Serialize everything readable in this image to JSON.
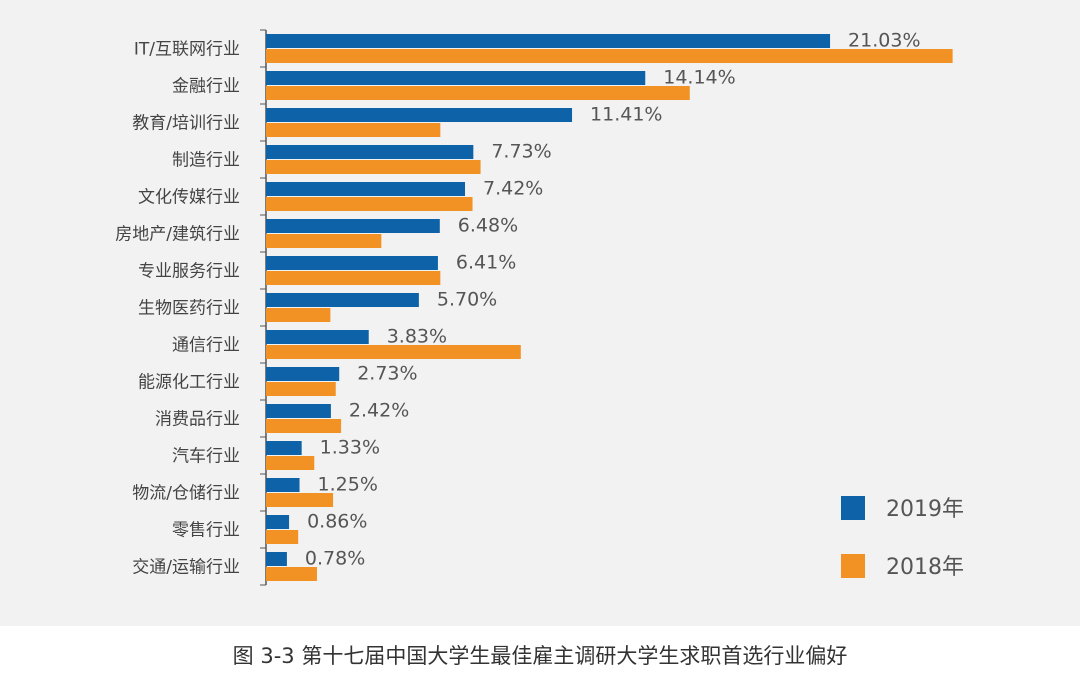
{
  "chart_data": {
    "type": "bar",
    "orientation": "horizontal",
    "categories": [
      "IT/互联网行业",
      "金融行业",
      "教育/培训行业",
      "制造行业",
      "文化传媒行业",
      "房地产/建筑行业",
      "专业服务行业",
      "生物医药行业",
      "通信行业",
      "能源化工行业",
      "消费品行业",
      "汽车行业",
      "物流/仓储行业",
      "零售行业",
      "交通/运输行业"
    ],
    "series": [
      {
        "name": "2019年",
        "color": "#0e63a8",
        "values": [
          21.03,
          14.14,
          11.41,
          7.73,
          7.42,
          6.48,
          6.41,
          5.7,
          3.83,
          2.73,
          2.42,
          1.33,
          1.25,
          0.86,
          0.78
        ]
      },
      {
        "name": "2018年",
        "color": "#f39224",
        "values": [
          25.6,
          15.8,
          6.5,
          8.0,
          7.7,
          4.3,
          6.5,
          2.4,
          9.5,
          2.6,
          2.8,
          1.8,
          2.5,
          1.2,
          1.9
        ]
      }
    ],
    "data_labels": [
      "21.03%",
      "14.14%",
      "11.41%",
      "7.73%",
      "7.42%",
      "6.48%",
      "6.41%",
      "5.70%",
      "3.83%",
      "2.73%",
      "2.42%",
      "1.33%",
      "1.25%",
      "0.86%",
      "0.78%"
    ],
    "xlim": [
      0,
      28
    ],
    "legend_position": "bottom-right"
  },
  "caption": "图 3-3 第十七届中国大学生最佳雇主调研大学生求职首选行业偏好"
}
